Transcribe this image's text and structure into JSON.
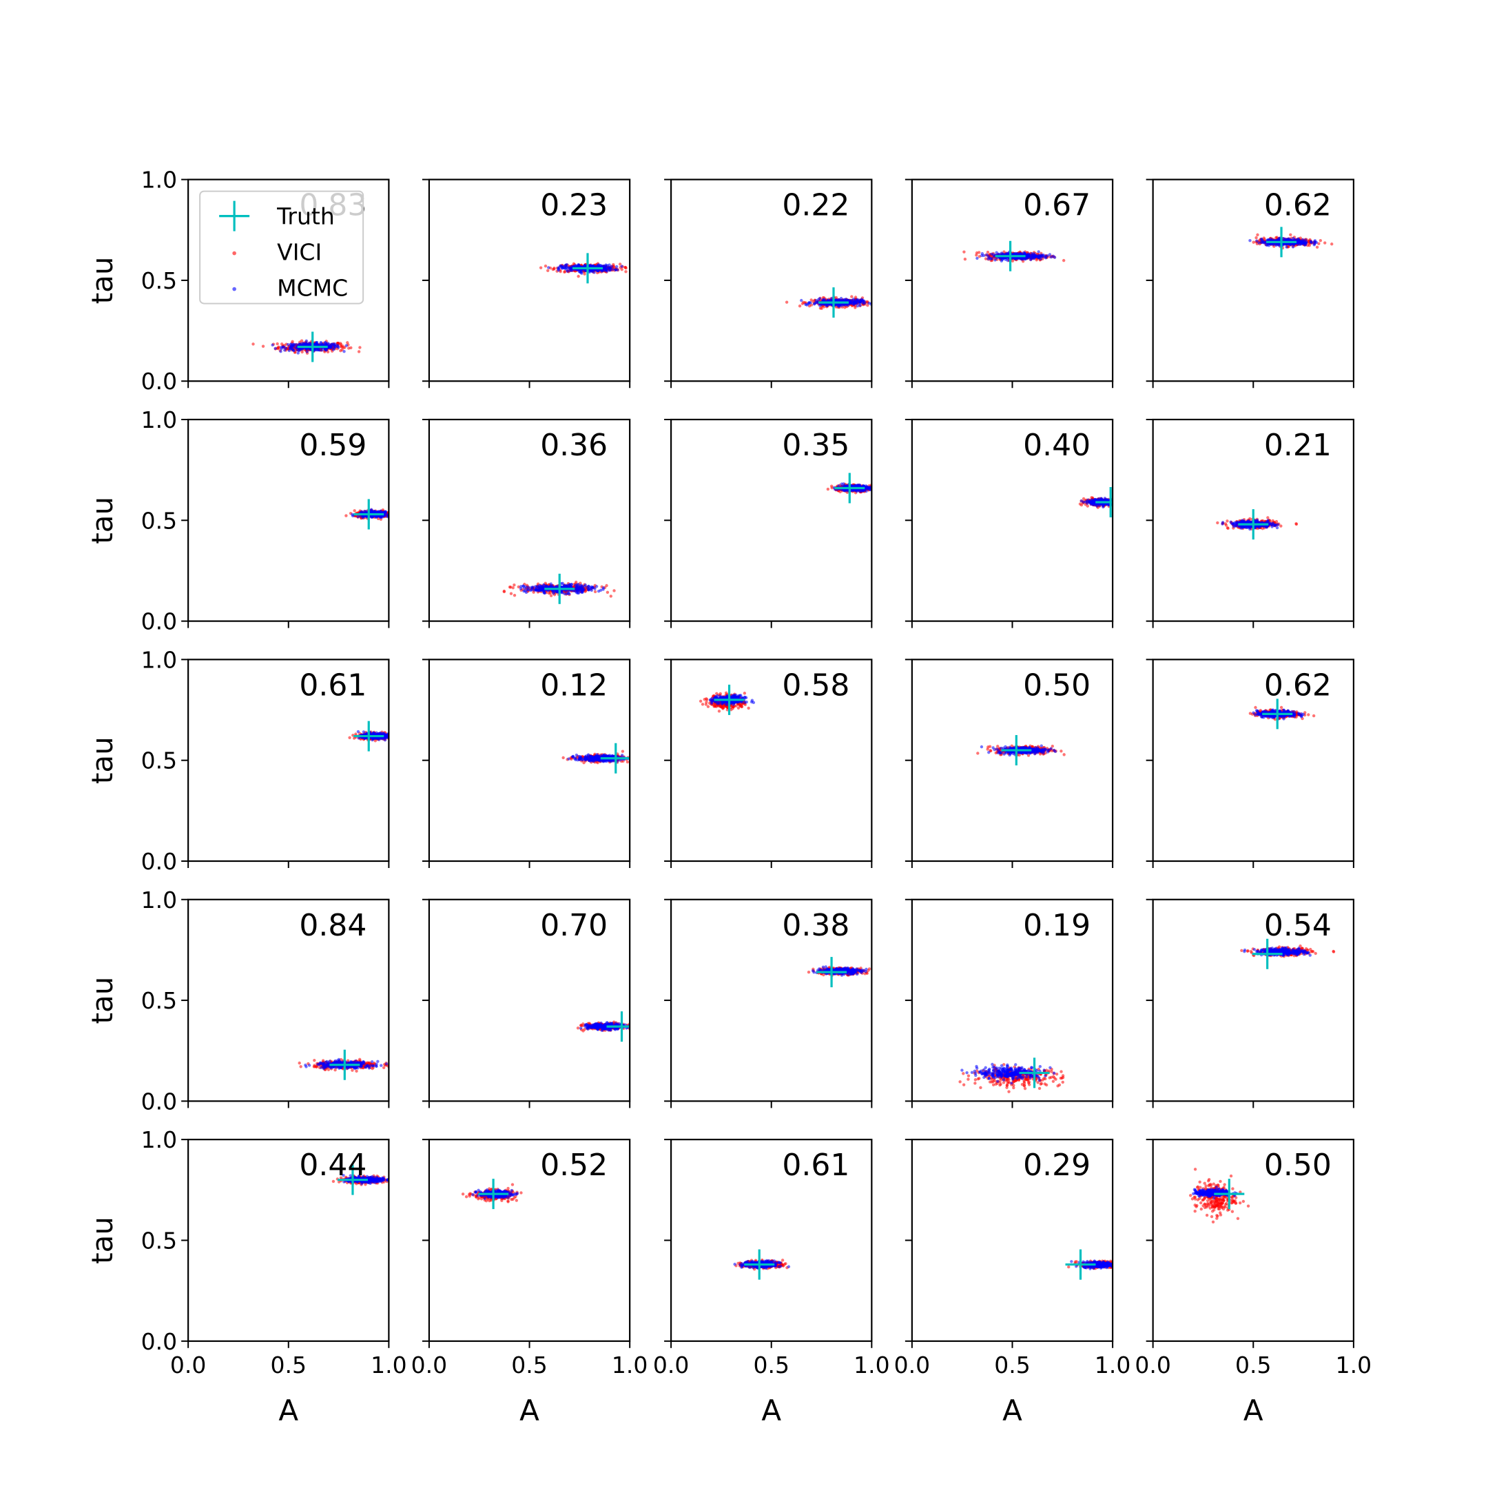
{
  "chart_data": {
    "type": "scatter",
    "layout": {
      "rows": 5,
      "cols": 5
    },
    "x_axis": {
      "label": "A",
      "range": [
        0.0,
        1.0
      ],
      "ticks": [
        "0.0",
        "0.5",
        "1.0"
      ],
      "tick_values": [
        0.0,
        0.5,
        1.0
      ]
    },
    "y_axis": {
      "label": "tau",
      "range": [
        0.0,
        1.0
      ],
      "ticks": [
        "0.0",
        "0.5",
        "1.0"
      ],
      "tick_values": [
        0.0,
        0.5,
        1.0
      ]
    },
    "grid": false,
    "legend": {
      "placement": "upper-left of first panel",
      "entries": [
        {
          "label": "Truth",
          "marker": "plus",
          "color": "#00bfbf"
        },
        {
          "label": "VICI",
          "marker": "dot",
          "color": "#ff0000"
        },
        {
          "label": "MCMC",
          "marker": "dot",
          "color": "#0000ff"
        }
      ]
    },
    "series_colors": {
      "Truth": "#00bfbf",
      "VICI": "#ff0000",
      "MCMC": "#0000ff"
    },
    "panels": [
      {
        "label": "0.83",
        "truth": [
          0.62,
          0.17
        ],
        "vici": {
          "cx": 0.62,
          "cy": 0.17,
          "sx": 0.085,
          "sy": 0.012
        },
        "mcmc": {
          "cx": 0.62,
          "cy": 0.17,
          "sx": 0.07,
          "sy": 0.009
        }
      },
      {
        "label": "0.23",
        "truth": [
          0.79,
          0.56
        ],
        "vici": {
          "cx": 0.79,
          "cy": 0.56,
          "sx": 0.08,
          "sy": 0.01
        },
        "mcmc": {
          "cx": 0.79,
          "cy": 0.56,
          "sx": 0.065,
          "sy": 0.008
        }
      },
      {
        "label": "0.22",
        "truth": [
          0.81,
          0.39
        ],
        "vici": {
          "cx": 0.84,
          "cy": 0.39,
          "sx": 0.07,
          "sy": 0.01
        },
        "mcmc": {
          "cx": 0.83,
          "cy": 0.39,
          "sx": 0.06,
          "sy": 0.008
        }
      },
      {
        "label": "0.67",
        "truth": [
          0.49,
          0.62
        ],
        "vici": {
          "cx": 0.53,
          "cy": 0.62,
          "sx": 0.08,
          "sy": 0.01
        },
        "mcmc": {
          "cx": 0.52,
          "cy": 0.62,
          "sx": 0.07,
          "sy": 0.008
        }
      },
      {
        "label": "0.62",
        "truth": [
          0.64,
          0.69
        ],
        "vici": {
          "cx": 0.66,
          "cy": 0.69,
          "sx": 0.07,
          "sy": 0.01
        },
        "mcmc": {
          "cx": 0.66,
          "cy": 0.69,
          "sx": 0.06,
          "sy": 0.008
        }
      },
      {
        "label": "0.59",
        "truth": [
          0.9,
          0.53
        ],
        "vici": {
          "cx": 0.93,
          "cy": 0.53,
          "sx": 0.05,
          "sy": 0.008
        },
        "mcmc": {
          "cx": 0.93,
          "cy": 0.53,
          "sx": 0.04,
          "sy": 0.007
        }
      },
      {
        "label": "0.36",
        "truth": [
          0.65,
          0.16
        ],
        "vici": {
          "cx": 0.65,
          "cy": 0.16,
          "sx": 0.1,
          "sy": 0.012
        },
        "mcmc": {
          "cx": 0.65,
          "cy": 0.16,
          "sx": 0.085,
          "sy": 0.01
        }
      },
      {
        "label": "0.35",
        "truth": [
          0.89,
          0.66
        ],
        "vici": {
          "cx": 0.91,
          "cy": 0.66,
          "sx": 0.05,
          "sy": 0.008
        },
        "mcmc": {
          "cx": 0.91,
          "cy": 0.66,
          "sx": 0.04,
          "sy": 0.007
        }
      },
      {
        "label": "0.40",
        "truth": [
          0.99,
          0.59
        ],
        "vici": {
          "cx": 0.94,
          "cy": 0.59,
          "sx": 0.04,
          "sy": 0.008
        },
        "mcmc": {
          "cx": 0.95,
          "cy": 0.59,
          "sx": 0.035,
          "sy": 0.007
        }
      },
      {
        "label": "0.21",
        "truth": [
          0.5,
          0.48
        ],
        "vici": {
          "cx": 0.5,
          "cy": 0.48,
          "sx": 0.06,
          "sy": 0.01
        },
        "mcmc": {
          "cx": 0.5,
          "cy": 0.48,
          "sx": 0.05,
          "sy": 0.008
        }
      },
      {
        "label": "0.61",
        "truth": [
          0.9,
          0.62
        ],
        "vici": {
          "cx": 0.93,
          "cy": 0.62,
          "sx": 0.04,
          "sy": 0.008
        },
        "mcmc": {
          "cx": 0.93,
          "cy": 0.62,
          "sx": 0.035,
          "sy": 0.007
        }
      },
      {
        "label": "0.12",
        "truth": [
          0.93,
          0.51
        ],
        "vici": {
          "cx": 0.85,
          "cy": 0.51,
          "sx": 0.06,
          "sy": 0.008
        },
        "mcmc": {
          "cx": 0.85,
          "cy": 0.51,
          "sx": 0.055,
          "sy": 0.007
        }
      },
      {
        "label": "0.58",
        "truth": [
          0.29,
          0.8
        ],
        "vici": {
          "cx": 0.28,
          "cy": 0.79,
          "sx": 0.045,
          "sy": 0.018
        },
        "mcmc": {
          "cx": 0.29,
          "cy": 0.8,
          "sx": 0.04,
          "sy": 0.01
        }
      },
      {
        "label": "0.50",
        "truth": [
          0.52,
          0.55
        ],
        "vici": {
          "cx": 0.56,
          "cy": 0.55,
          "sx": 0.07,
          "sy": 0.01
        },
        "mcmc": {
          "cx": 0.55,
          "cy": 0.55,
          "sx": 0.06,
          "sy": 0.008
        }
      },
      {
        "label": "0.62",
        "truth": [
          0.62,
          0.73
        ],
        "vici": {
          "cx": 0.62,
          "cy": 0.73,
          "sx": 0.055,
          "sy": 0.009
        },
        "mcmc": {
          "cx": 0.62,
          "cy": 0.73,
          "sx": 0.05,
          "sy": 0.008
        }
      },
      {
        "label": "0.84",
        "truth": [
          0.78,
          0.18
        ],
        "vici": {
          "cx": 0.79,
          "cy": 0.18,
          "sx": 0.08,
          "sy": 0.01
        },
        "mcmc": {
          "cx": 0.78,
          "cy": 0.18,
          "sx": 0.07,
          "sy": 0.008
        }
      },
      {
        "label": "0.70",
        "truth": [
          0.96,
          0.37
        ],
        "vici": {
          "cx": 0.88,
          "cy": 0.37,
          "sx": 0.05,
          "sy": 0.008
        },
        "mcmc": {
          "cx": 0.88,
          "cy": 0.37,
          "sx": 0.045,
          "sy": 0.007
        }
      },
      {
        "label": "0.38",
        "truth": [
          0.8,
          0.64
        ],
        "vici": {
          "cx": 0.84,
          "cy": 0.645,
          "sx": 0.06,
          "sy": 0.008
        },
        "mcmc": {
          "cx": 0.84,
          "cy": 0.645,
          "sx": 0.055,
          "sy": 0.007
        }
      },
      {
        "label": "0.19",
        "truth": [
          0.61,
          0.14
        ],
        "vici": {
          "cx": 0.52,
          "cy": 0.12,
          "sx": 0.11,
          "sy": 0.022
        },
        "mcmc": {
          "cx": 0.49,
          "cy": 0.14,
          "sx": 0.08,
          "sy": 0.015
        }
      },
      {
        "label": "0.54",
        "truth": [
          0.57,
          0.73
        ],
        "vici": {
          "cx": 0.65,
          "cy": 0.74,
          "sx": 0.07,
          "sy": 0.009
        },
        "mcmc": {
          "cx": 0.64,
          "cy": 0.74,
          "sx": 0.06,
          "sy": 0.008
        }
      },
      {
        "label": "0.44",
        "truth": [
          0.82,
          0.8
        ],
        "vici": {
          "cx": 0.88,
          "cy": 0.8,
          "sx": 0.05,
          "sy": 0.008
        },
        "mcmc": {
          "cx": 0.88,
          "cy": 0.8,
          "sx": 0.045,
          "sy": 0.007
        }
      },
      {
        "label": "0.52",
        "truth": [
          0.32,
          0.73
        ],
        "vici": {
          "cx": 0.32,
          "cy": 0.725,
          "sx": 0.05,
          "sy": 0.012
        },
        "mcmc": {
          "cx": 0.33,
          "cy": 0.73,
          "sx": 0.04,
          "sy": 0.008
        }
      },
      {
        "label": "0.61",
        "truth": [
          0.44,
          0.38
        ],
        "vici": {
          "cx": 0.46,
          "cy": 0.38,
          "sx": 0.05,
          "sy": 0.009
        },
        "mcmc": {
          "cx": 0.45,
          "cy": 0.38,
          "sx": 0.045,
          "sy": 0.008
        }
      },
      {
        "label": "0.29",
        "truth": [
          0.84,
          0.38
        ],
        "vici": {
          "cx": 0.93,
          "cy": 0.38,
          "sx": 0.045,
          "sy": 0.008
        },
        "mcmc": {
          "cx": 0.93,
          "cy": 0.38,
          "sx": 0.04,
          "sy": 0.007
        }
      },
      {
        "label": "0.50",
        "truth": [
          0.38,
          0.73
        ],
        "vici": {
          "cx": 0.31,
          "cy": 0.71,
          "sx": 0.05,
          "sy": 0.04
        },
        "mcmc": {
          "cx": 0.3,
          "cy": 0.735,
          "sx": 0.045,
          "sy": 0.008
        }
      }
    ]
  }
}
